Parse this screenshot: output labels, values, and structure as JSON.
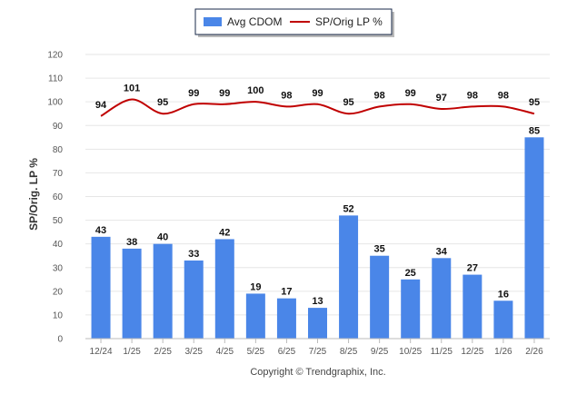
{
  "chart_data": {
    "type": "bar",
    "title": "",
    "xlabel": "",
    "ylabel": "SP/Orig. LP %",
    "ylim": [
      0,
      120
    ],
    "yticks": [
      0,
      10,
      20,
      30,
      40,
      50,
      60,
      70,
      80,
      90,
      100,
      110,
      120
    ],
    "grid": true,
    "legend_position": "top-center",
    "categories": [
      "12/24",
      "1/25",
      "2/25",
      "3/25",
      "4/25",
      "5/25",
      "6/25",
      "7/25",
      "8/25",
      "9/25",
      "10/25",
      "11/25",
      "12/25",
      "1/26",
      "2/26"
    ],
    "series": [
      {
        "name": "Avg CDOM",
        "kind": "bar",
        "color": "#4a86e8",
        "values": [
          43,
          38,
          40,
          33,
          42,
          19,
          17,
          13,
          52,
          35,
          25,
          34,
          27,
          16,
          85
        ]
      },
      {
        "name": "SP/Orig LP %",
        "kind": "line",
        "color": "#c00000",
        "values": [
          94,
          101,
          95,
          99,
          99,
          100,
          98,
          99,
          95,
          98,
          99,
          97,
          98,
          98,
          95
        ]
      }
    ]
  },
  "footer": {
    "copyright": "Copyright © Trendgraphix, Inc."
  }
}
